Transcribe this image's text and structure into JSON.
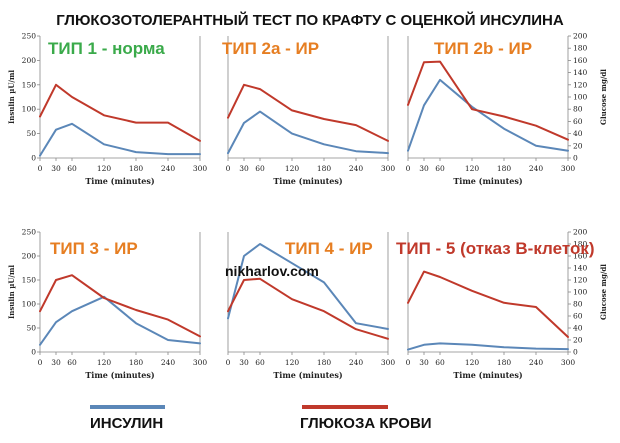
{
  "title": "ГЛЮКОЗОТОЛЕРАНТНЫЙ ТЕСТ ПО КРАФТУ С ОЦЕНКОЙ ИНСУЛИНА",
  "watermark": "nikharlov.com",
  "legend": {
    "insulin_label": "ИНСУЛИН",
    "glucose_label": "ГЛЮКОЗА КРОВИ",
    "insulin_color": "#5b87b8",
    "glucose_color": "#c0392b"
  },
  "axes": {
    "left_label": "Insulin µU/ml",
    "right_label": "Glucose mg/dl",
    "x_label": "Time (minutes)",
    "x_ticks": [
      0,
      30,
      60,
      120,
      180,
      240,
      300
    ],
    "left_ticks": [
      0,
      50,
      100,
      150,
      200,
      250
    ],
    "right_ticks": [
      0,
      20,
      40,
      60,
      80,
      100,
      120,
      140,
      160,
      180,
      200
    ],
    "left_range": [
      0,
      250
    ],
    "right_range": [
      0,
      200
    ]
  },
  "chart_data": [
    {
      "type": "line",
      "label": "ТИП 1 - норма",
      "label_color": "#3aaa4a",
      "x": [
        0,
        30,
        60,
        120,
        180,
        240,
        300
      ],
      "series": [
        {
          "name": "ИНСУЛИН",
          "axis": "left",
          "values": [
            5,
            58,
            70,
            28,
            12,
            8,
            8
          ]
        },
        {
          "name": "ГЛЮКОЗА КРОВИ",
          "axis": "right",
          "values": [
            68,
            120,
            100,
            70,
            58,
            58,
            28
          ]
        }
      ]
    },
    {
      "type": "line",
      "label": "ТИП 2а - ИР",
      "label_color": "#e67e22",
      "x": [
        0,
        30,
        60,
        120,
        180,
        240,
        300
      ],
      "series": [
        {
          "name": "ИНСУЛИН",
          "axis": "left",
          "values": [
            10,
            72,
            95,
            50,
            28,
            14,
            10
          ]
        },
        {
          "name": "ГЛЮКОЗА КРОВИ",
          "axis": "right",
          "values": [
            66,
            120,
            113,
            78,
            64,
            54,
            28
          ]
        }
      ]
    },
    {
      "type": "line",
      "label": "ТИП 2b - ИР",
      "label_color": "#e67e22",
      "x": [
        0,
        30,
        60,
        120,
        180,
        240,
        300
      ],
      "series": [
        {
          "name": "ИНСУЛИН",
          "axis": "left",
          "values": [
            15,
            108,
            160,
            105,
            60,
            25,
            15
          ]
        },
        {
          "name": "ГЛЮКОЗА КРОВИ",
          "axis": "right",
          "values": [
            87,
            157,
            158,
            80,
            68,
            53,
            30
          ]
        }
      ]
    },
    {
      "type": "line",
      "label": "ТИП 3 - ИР",
      "label_color": "#e67e22",
      "x": [
        0,
        30,
        60,
        120,
        180,
        240,
        300
      ],
      "series": [
        {
          "name": "ИНСУЛИН",
          "axis": "left",
          "values": [
            15,
            62,
            85,
            115,
            60,
            25,
            18
          ]
        },
        {
          "name": "ГЛЮКОЗА КРОВИ",
          "axis": "right",
          "values": [
            68,
            120,
            128,
            90,
            70,
            54,
            26
          ]
        }
      ]
    },
    {
      "type": "line",
      "label": "ТИП 4 - ИР",
      "label_color": "#e67e22",
      "x": [
        0,
        30,
        60,
        120,
        180,
        240,
        300
      ],
      "series": [
        {
          "name": "ИНСУЛИН",
          "axis": "left",
          "values": [
            70,
            200,
            225,
            185,
            145,
            60,
            48
          ]
        },
        {
          "name": "ГЛЮКОЗА КРОВИ",
          "axis": "right",
          "values": [
            68,
            120,
            122,
            88,
            68,
            38,
            22
          ]
        }
      ]
    },
    {
      "type": "line",
      "label": "ТИП - 5 (отказ В-клеток)",
      "label_color": "#c0392b",
      "x": [
        0,
        30,
        60,
        120,
        180,
        240,
        300
      ],
      "series": [
        {
          "name": "ИНСУЛИН",
          "axis": "left",
          "values": [
            5,
            15,
            18,
            15,
            10,
            7,
            6
          ]
        },
        {
          "name": "ГЛЮКОЗА КРОВИ",
          "axis": "right",
          "values": [
            82,
            134,
            125,
            102,
            82,
            75,
            25
          ]
        }
      ]
    }
  ]
}
